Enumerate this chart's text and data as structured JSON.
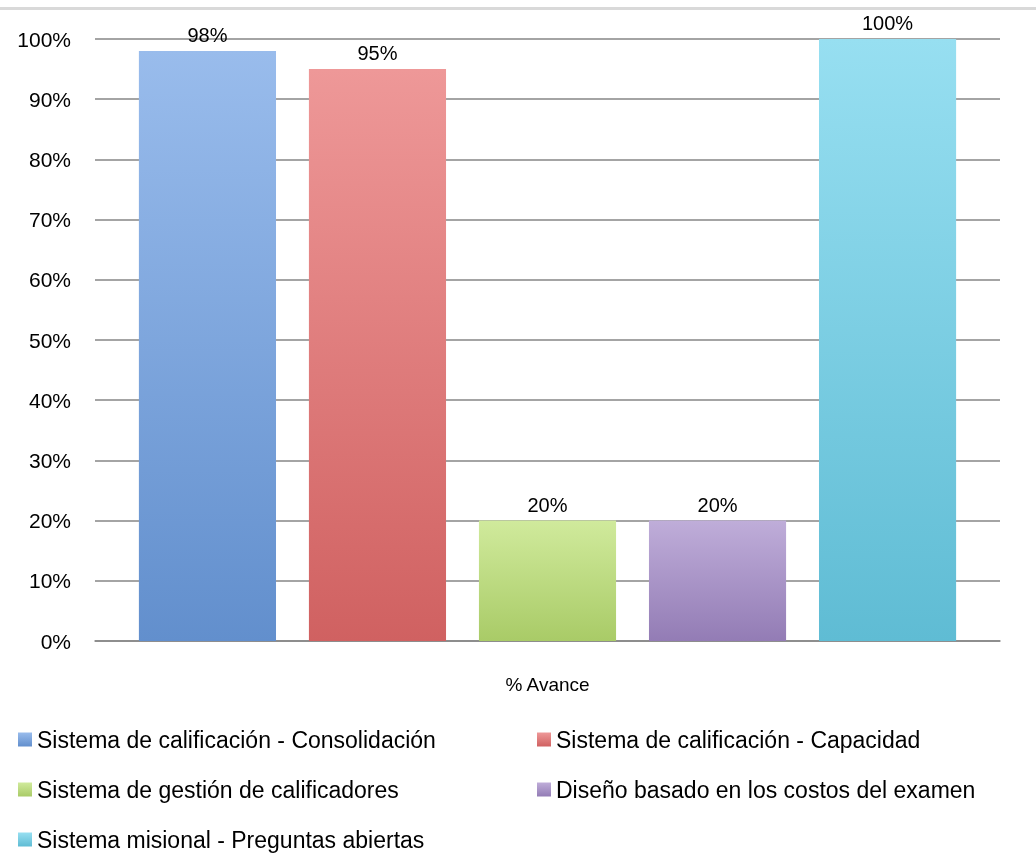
{
  "chart_data": {
    "type": "bar",
    "categories": [
      "% Avance"
    ],
    "series": [
      {
        "name": "Sistema de calificación - Consolidación",
        "color": "#6d9fe4",
        "values": [
          98
        ],
        "value_labels": [
          "98%"
        ]
      },
      {
        "name": "Sistema de calificación - Capacidad",
        "color": "#e76c6c",
        "values": [
          95
        ],
        "value_labels": [
          "95%"
        ]
      },
      {
        "name": "Sistema de gestión de calificadores",
        "color": "#bce172",
        "values": [
          20
        ],
        "value_labels": [
          "20%"
        ]
      },
      {
        "name": "Diseño basado en los costos del examen",
        "color": "#a38ac9",
        "values": [
          20
        ],
        "value_labels": [
          "20%"
        ]
      },
      {
        "name": "Sistema misional - Preguntas abiertas",
        "color": "#6ad1eb",
        "values": [
          100
        ],
        "value_labels": [
          "100%"
        ]
      }
    ],
    "ylim": [
      0,
      100
    ],
    "yticks": [
      {
        "value": 0,
        "label": "0%"
      },
      {
        "value": 10,
        "label": "10%"
      },
      {
        "value": 20,
        "label": "20%"
      },
      {
        "value": 30,
        "label": "30%"
      },
      {
        "value": 40,
        "label": "40%"
      },
      {
        "value": 50,
        "label": "50%"
      },
      {
        "value": 60,
        "label": "60%"
      },
      {
        "value": 70,
        "label": "70%"
      },
      {
        "value": 80,
        "label": "80%"
      },
      {
        "value": 90,
        "label": "90%"
      },
      {
        "value": 100,
        "label": "100%"
      }
    ],
    "grid": "y",
    "legend": "bottom"
  }
}
